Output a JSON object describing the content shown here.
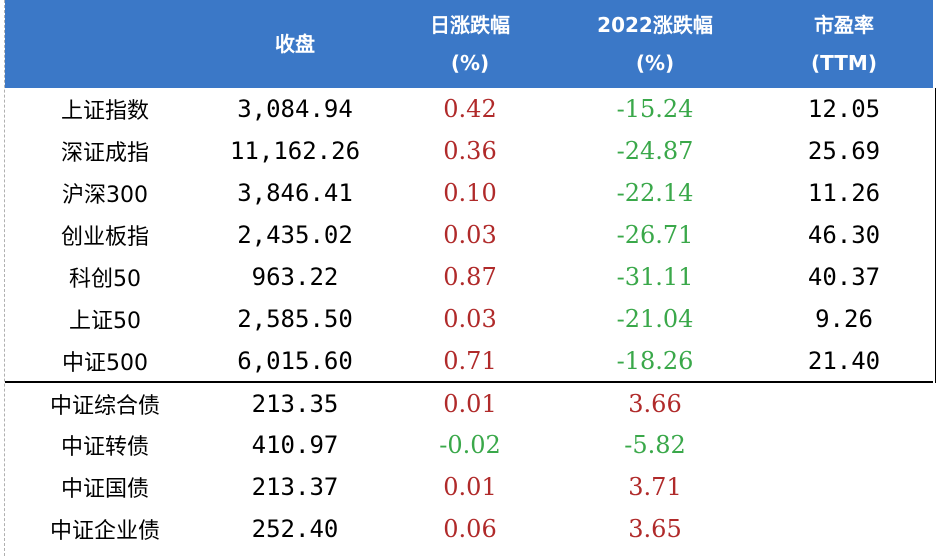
{
  "header": {
    "col0": "",
    "col1": "收盘",
    "col2_line1": "日涨跌幅",
    "col2_line2": "(%)",
    "col3_line1": "2022涨跌幅",
    "col3_line2": "(%)",
    "col4_line1": "市盈率",
    "col4_line2": "(TTM)"
  },
  "colors": {
    "header_bg": "#3b78c7",
    "up": "#b02a2a",
    "down": "#3aa84a"
  },
  "rows": [
    {
      "name": "上证指数",
      "close": "3,084.94",
      "day": "0.42",
      "ytd": "-15.24",
      "pe": "12.05"
    },
    {
      "name": "深证成指",
      "close": "11,162.26",
      "day": "0.36",
      "ytd": "-24.87",
      "pe": "25.69"
    },
    {
      "name": "沪深300",
      "close": "3,846.41",
      "day": "0.10",
      "ytd": "-22.14",
      "pe": "11.26"
    },
    {
      "name": "创业板指",
      "close": "2,435.02",
      "day": "0.03",
      "ytd": "-26.71",
      "pe": "46.30"
    },
    {
      "name": "科创50",
      "close": "963.22",
      "day": "0.87",
      "ytd": "-31.11",
      "pe": "40.37"
    },
    {
      "name": "上证50",
      "close": "2,585.50",
      "day": "0.03",
      "ytd": "-21.04",
      "pe": "9.26"
    },
    {
      "name": "中证500",
      "close": "6,015.60",
      "day": "0.71",
      "ytd": "-18.26",
      "pe": "21.40"
    },
    {
      "name": "中证综合债",
      "close": "213.35",
      "day": "0.01",
      "ytd": "3.66",
      "pe": ""
    },
    {
      "name": "中证转债",
      "close": "410.97",
      "day": "-0.02",
      "ytd": "-5.82",
      "pe": ""
    },
    {
      "name": "中证国债",
      "close": "213.37",
      "day": "0.01",
      "ytd": "3.71",
      "pe": ""
    },
    {
      "name": "中证企业债",
      "close": "252.40",
      "day": "0.06",
      "ytd": "3.65",
      "pe": ""
    }
  ]
}
